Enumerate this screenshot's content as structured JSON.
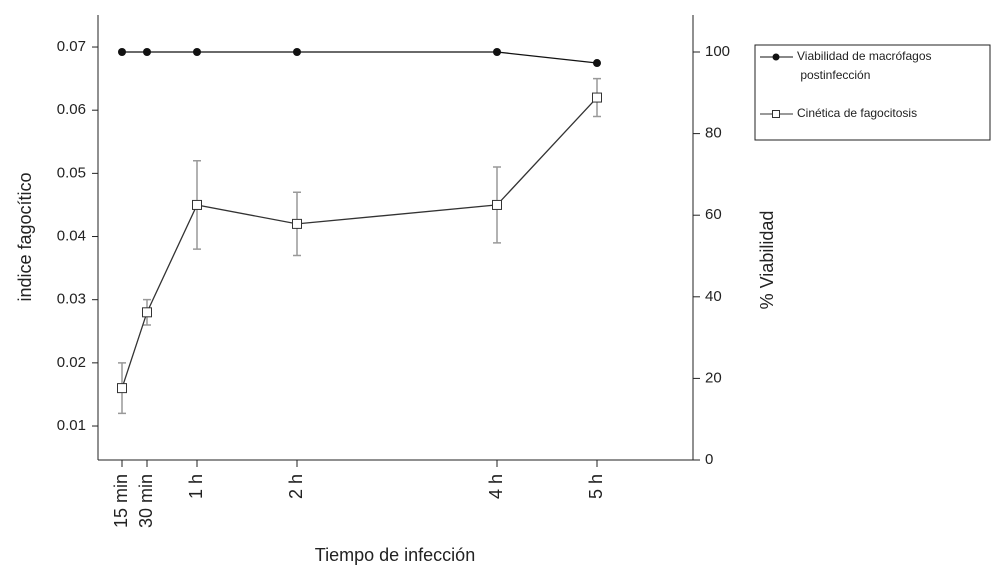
{
  "chart_data": {
    "type": "line",
    "x_label": "Tiempo de infección",
    "y_label": "indice fagocítico",
    "y2_label": "% Viabilidad",
    "x": [
      0.25,
      0.5,
      1,
      2,
      4,
      5
    ],
    "xlim": [
      0.01,
      5.96
    ],
    "xticks": [
      {
        "value": 0.25,
        "label": "15 min"
      },
      {
        "value": 0.5,
        "label": "30 min"
      },
      {
        "value": 1,
        "label": "1 h"
      },
      {
        "value": 2,
        "label": "2 h"
      },
      {
        "value": 4,
        "label": "4 h"
      },
      {
        "value": 5,
        "label": "5 h"
      }
    ],
    "ylim": [
      0.00462,
      0.07507
    ],
    "yticks": [
      0.01,
      0.02,
      0.03,
      0.04,
      0.05,
      0.06,
      0.07
    ],
    "y2lim": [
      0,
      109.07
    ],
    "y2ticks": [
      0,
      20,
      40,
      60,
      80,
      100
    ],
    "series": [
      {
        "name": "Viabilidad de macrófagos postinfección",
        "color": "#111111",
        "marker": "filled-circle",
        "axis": "y2",
        "values": [
          100,
          100,
          100,
          100,
          100,
          97.3
        ]
      },
      {
        "name": "Cinética de fagocitosis",
        "color": "#333333",
        "marker": "open-square",
        "axis": "y",
        "values": [
          0.016,
          0.028,
          0.045,
          0.042,
          0.045,
          0.062
        ],
        "errors": [
          0.004,
          0.002,
          0.007,
          0.005,
          0.006,
          0.003
        ],
        "error_color": "#999999"
      }
    ]
  }
}
